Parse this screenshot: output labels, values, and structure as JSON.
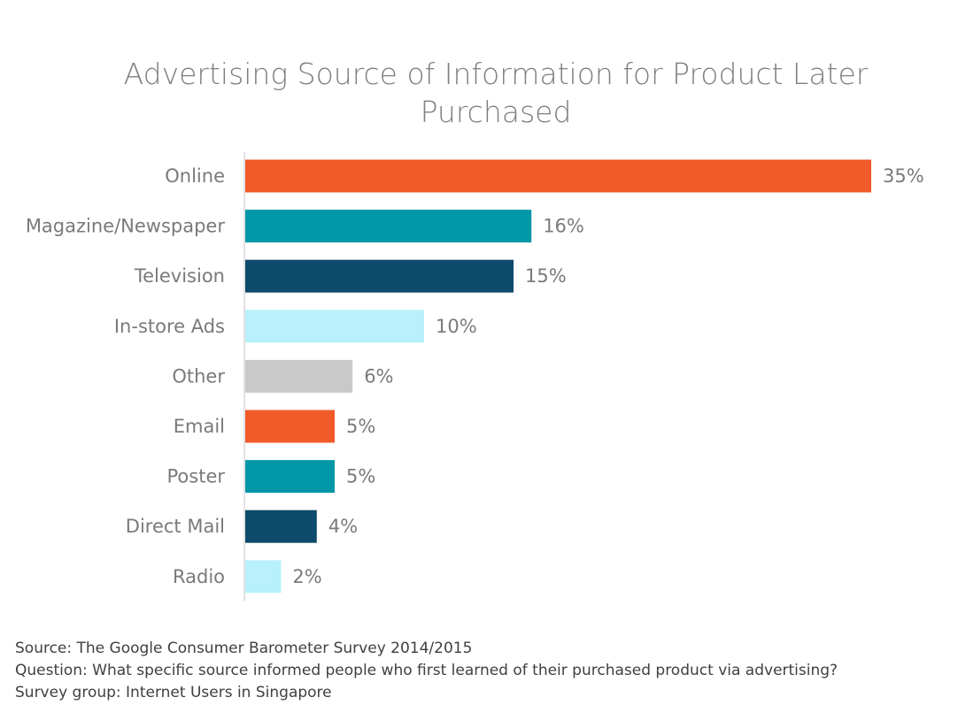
{
  "chart_data": {
    "type": "bar",
    "orientation": "horizontal",
    "title": "Advertising Source  of Information for Product Later\nPurchased",
    "categories": [
      "Online",
      "Magazine/Newspaper",
      "Television",
      "In-store Ads",
      "Other",
      "Email",
      "Poster",
      "Direct Mail",
      "Radio"
    ],
    "values": [
      35,
      16,
      15,
      10,
      6,
      5,
      5,
      4,
      2
    ],
    "value_labels": [
      "35%",
      "16%",
      "15%",
      "10%",
      "6%",
      "5%",
      "5%",
      "4%",
      "2%"
    ],
    "bar_colors": [
      "#f15a29",
      "#0097a7",
      "#0d4a6b",
      "#b8f0fb",
      "#c9c9c9",
      "#f15a29",
      "#0097a7",
      "#0d4a6b",
      "#b8f0fb"
    ],
    "xlim": [
      0,
      35
    ],
    "grid": false,
    "legend": "none"
  },
  "footnotes": {
    "source": "Source: The Google Consumer Barometer Survey 2014/2015",
    "question": "Question: What specific source informed people who first learned of their purchased product via advertising?",
    "survey_group": "Survey group: Internet Users in Singapore"
  },
  "colors": {
    "axis": "#d9d9d9",
    "text": "#7a7a7a"
  }
}
